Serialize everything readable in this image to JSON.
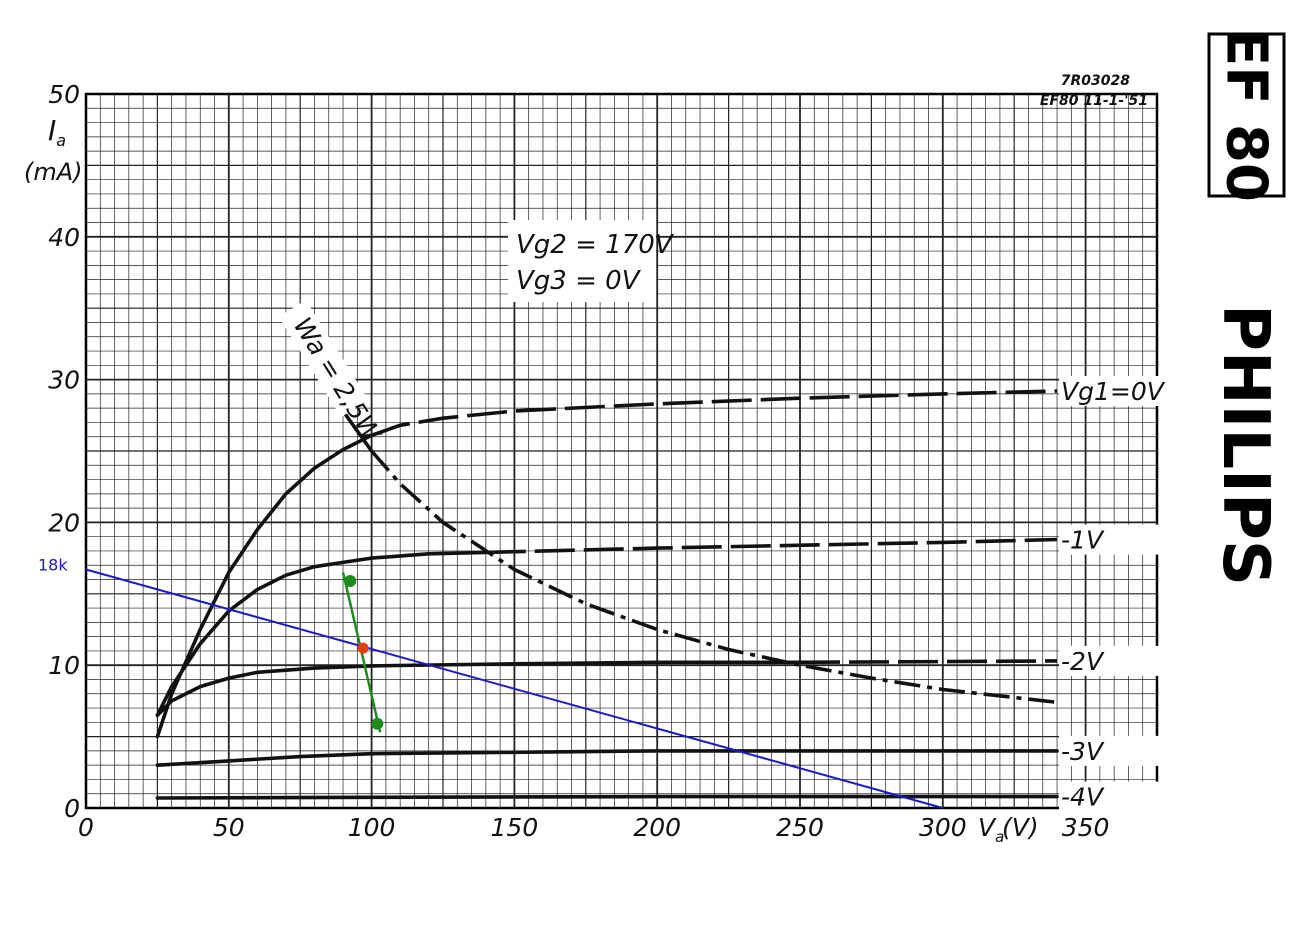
{
  "chart_data": {
    "type": "line",
    "brand": "PHILIPS",
    "tube_type": "EF 80",
    "drawing_ref": "7R03028",
    "drawing_date": "EF80  11-1-'51",
    "conditions": [
      "Vg2 = 170V",
      "Vg3 = 0V"
    ],
    "y_label": {
      "symbol": "I",
      "sub": "a",
      "unit": "(mA)"
    },
    "x_label": {
      "symbol": "V",
      "sub": "a",
      "unit": "(V)"
    },
    "xlim": [
      0,
      375
    ],
    "ylim": [
      0,
      50
    ],
    "x_ticks": [
      0,
      50,
      100,
      150,
      200,
      250,
      300,
      350
    ],
    "y_ticks": [
      0,
      10,
      20,
      30,
      40,
      50
    ],
    "grid": true,
    "series": [
      {
        "name": "Vg1=0V",
        "color": "#111111",
        "points": [
          [
            25,
            5
          ],
          [
            30,
            8
          ],
          [
            40,
            12.5
          ],
          [
            50,
            16.5
          ],
          [
            60,
            19.5
          ],
          [
            70,
            22
          ],
          [
            80,
            23.8
          ],
          [
            90,
            25.1
          ],
          [
            100,
            26.1
          ],
          [
            110,
            26.8
          ],
          [
            125,
            27.3
          ],
          [
            150,
            27.8
          ],
          [
            200,
            28.3
          ],
          [
            250,
            28.7
          ],
          [
            300,
            29
          ],
          [
            340,
            29.2
          ]
        ],
        "dash_from": 100
      },
      {
        "name": "-1V",
        "color": "#111111",
        "points": [
          [
            25,
            6.5
          ],
          [
            30,
            8.5
          ],
          [
            40,
            11.5
          ],
          [
            50,
            13.8
          ],
          [
            60,
            15.3
          ],
          [
            70,
            16.3
          ],
          [
            80,
            16.9
          ],
          [
            90,
            17.2
          ],
          [
            100,
            17.5
          ],
          [
            120,
            17.8
          ],
          [
            140,
            17.9
          ],
          [
            200,
            18.2
          ],
          [
            300,
            18.6
          ],
          [
            340,
            18.8
          ]
        ],
        "dash_from": 170
      },
      {
        "name": "-2V",
        "color": "#111111",
        "points": [
          [
            25,
            6.5
          ],
          [
            30,
            7.5
          ],
          [
            40,
            8.5
          ],
          [
            50,
            9.1
          ],
          [
            60,
            9.5
          ],
          [
            80,
            9.8
          ],
          [
            100,
            9.95
          ],
          [
            150,
            10.1
          ],
          [
            200,
            10.2
          ],
          [
            250,
            10.2
          ],
          [
            300,
            10.25
          ],
          [
            340,
            10.3
          ]
        ],
        "dash_from": 250
      },
      {
        "name": "-3V",
        "color": "#111111",
        "points": [
          [
            25,
            3
          ],
          [
            50,
            3.3
          ],
          [
            75,
            3.6
          ],
          [
            100,
            3.8
          ],
          [
            150,
            3.9
          ],
          [
            200,
            4
          ],
          [
            300,
            4
          ],
          [
            340,
            4
          ]
        ]
      },
      {
        "name": "-4V",
        "color": "#111111",
        "points": [
          [
            25,
            0.7
          ],
          [
            100,
            0.75
          ],
          [
            200,
            0.8
          ],
          [
            340,
            0.8
          ]
        ]
      },
      {
        "name": "Wa = 2,5W",
        "color": "#111111",
        "points": [
          [
            75,
            33.3
          ],
          [
            80,
            31.25
          ],
          [
            90,
            27.8
          ],
          [
            100,
            25
          ],
          [
            110,
            22.7
          ],
          [
            125,
            20
          ],
          [
            150,
            16.7
          ],
          [
            175,
            14.3
          ],
          [
            200,
            12.5
          ],
          [
            225,
            11.1
          ],
          [
            250,
            10
          ],
          [
            275,
            9.1
          ],
          [
            300,
            8.3
          ],
          [
            340,
            7.4
          ]
        ],
        "dash_from": 100
      }
    ],
    "annotations": {
      "load_line": {
        "label": "18k",
        "color": "#1a1acc",
        "from": [
          0,
          16.7
        ],
        "to": [
          300,
          0
        ]
      },
      "grid_swing": {
        "color": "#1f8a1f",
        "from": [
          90,
          16.5
        ],
        "to": [
          103,
          5.3
        ],
        "end_points": [
          [
            92.5,
            15.9
          ],
          [
            102,
            5.9
          ]
        ]
      },
      "operating_point": {
        "color": "#e04010",
        "point": [
          97,
          11.2
        ]
      }
    }
  }
}
